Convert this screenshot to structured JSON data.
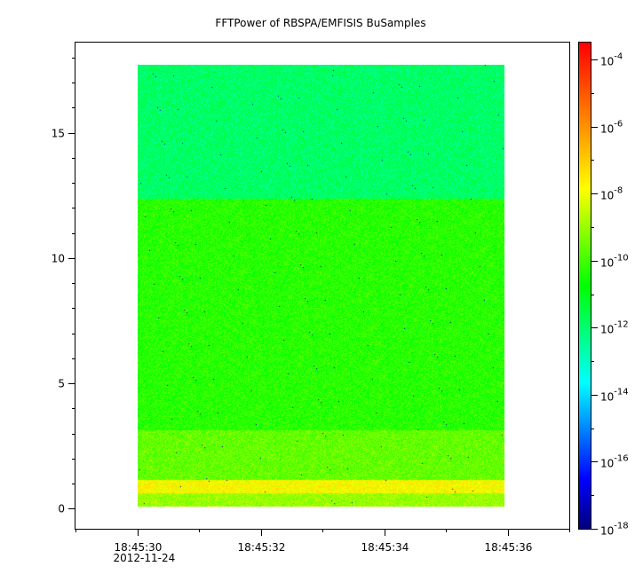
{
  "chart_data": {
    "type": "heatmap",
    "title": "FFTPower of RBSPA/EMFISIS  BuSamples",
    "xlabel": "",
    "ylabel": "",
    "x": {
      "range": [
        "18:45:29.0",
        "18:45:37.0"
      ],
      "ticks": [
        {
          "value": "18:45:30",
          "label": "18:45:30",
          "sublabel": "2012-11-24"
        },
        {
          "value": "18:45:32",
          "label": "18:45:32",
          "sublabel": ""
        },
        {
          "value": "18:45:34",
          "label": "18:45:34",
          "sublabel": ""
        },
        {
          "value": "18:45:36",
          "label": "18:45:36",
          "sublabel": ""
        }
      ],
      "minor_step_s": 1,
      "data_extent": [
        "18:45:30.0",
        "18:45:35.95"
      ]
    },
    "y": {
      "range": [
        -0.8,
        18.6
      ],
      "ticks": [
        0,
        5,
        10,
        15
      ],
      "minor_step": 1,
      "data_extent": [
        0,
        17.5
      ]
    },
    "colorbar": {
      "scale": "log",
      "range": [
        1e-18,
        0.00032
      ],
      "ticks": [
        {
          "value": 0.0001,
          "base": "10",
          "exp": "-4"
        },
        {
          "value": 1e-06,
          "base": "10",
          "exp": "-6"
        },
        {
          "value": 1e-08,
          "base": "10",
          "exp": "-8"
        },
        {
          "value": 1e-10,
          "base": "10",
          "exp": "-10"
        },
        {
          "value": 1e-12,
          "base": "10",
          "exp": "-12"
        },
        {
          "value": 1e-14,
          "base": "10",
          "exp": "-14"
        },
        {
          "value": 1e-16,
          "base": "10",
          "exp": "-16"
        },
        {
          "value": 1e-18,
          "base": "10",
          "exp": "-18"
        }
      ],
      "colormap": [
        "#00007f",
        "#0000ff",
        "#007fff",
        "#00ffff",
        "#00ff80",
        "#00ff00",
        "#7fff00",
        "#ffff00",
        "#ffaa00",
        "#ff5500",
        "#ff0000"
      ]
    },
    "bands": [
      {
        "y_range": [
          0,
          0.5
        ],
        "log10_power": -9.0
      },
      {
        "y_range": [
          0.5,
          1.05
        ],
        "log10_power": -7.8
      },
      {
        "y_range": [
          1.05,
          3.0
        ],
        "log10_power": -9.6
      },
      {
        "y_range": [
          3.0,
          12.2
        ],
        "log10_power": -10.3
      },
      {
        "y_range": [
          12.2,
          17.5
        ],
        "log10_power": -11.9
      }
    ],
    "grid": false
  }
}
